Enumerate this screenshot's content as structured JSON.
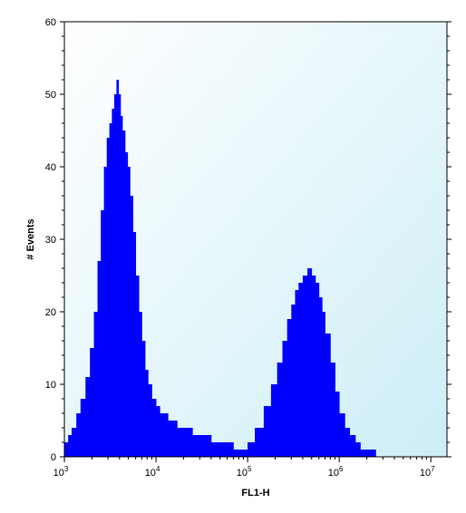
{
  "chart_data": {
    "type": "area",
    "title": "",
    "xlabel": "FL1-H",
    "ylabel": "# Events",
    "x_scale": "log",
    "xlim": [
      1000,
      15000000
    ],
    "ylim": [
      0,
      60
    ],
    "x_ticks": [
      {
        "value": 1000,
        "base": "10",
        "exp": "3"
      },
      {
        "value": 10000,
        "base": "10",
        "exp": "4"
      },
      {
        "value": 100000,
        "base": "10",
        "exp": "5"
      },
      {
        "value": 1000000,
        "base": "10",
        "exp": "6"
      },
      {
        "value": 10000000,
        "base": "10",
        "exp": "7"
      }
    ],
    "y_ticks": [
      "0",
      "10",
      "20",
      "30",
      "40",
      "50",
      "60"
    ],
    "grid": false,
    "legend": "none",
    "colors": {
      "fill": "#0000ff",
      "background_top": "#ffffff",
      "background_bottom": "#cdeef6",
      "axis": "#000000"
    },
    "series": [
      {
        "x": [
          1000,
          1100,
          1200,
          1350,
          1500,
          1700,
          1900,
          2100,
          2300,
          2500,
          2700,
          2900,
          3100,
          3300,
          3500,
          3700,
          3900,
          4100,
          4300,
          4600,
          4900,
          5200,
          5600,
          6000,
          6500,
          7000,
          7600,
          8200,
          9000,
          10000,
          11000,
          12000,
          13500,
          15000,
          17000,
          20000,
          25000,
          30000,
          40000,
          50000,
          60000,
          70000,
          80000,
          100000,
          120000,
          150000,
          180000,
          210000,
          240000,
          270000,
          300000,
          330000,
          360000,
          400000,
          450000,
          500000,
          550000,
          600000,
          650000,
          700000,
          800000,
          900000,
          1000000,
          1150000,
          1300000,
          1500000,
          1700000,
          2000000,
          2500000,
          3000000,
          4000000,
          5000000,
          7000000,
          10000000,
          13000000,
          15000000
        ],
        "y": [
          2,
          3,
          4,
          6,
          8,
          11,
          15,
          20,
          27,
          34,
          40,
          44,
          46,
          48,
          50,
          52,
          50,
          47,
          45,
          42,
          40,
          36,
          31,
          25,
          20,
          16,
          12,
          10,
          8,
          7,
          6,
          6,
          5,
          5,
          4,
          4,
          3,
          3,
          2,
          2,
          2,
          1,
          1,
          2,
          4,
          7,
          10,
          13,
          16,
          19,
          21,
          23,
          24,
          25,
          26,
          25,
          24,
          22,
          20,
          17,
          13,
          9,
          6,
          4,
          3,
          2,
          1,
          1,
          0,
          0,
          0,
          0,
          0,
          0,
          0,
          0
        ]
      }
    ]
  }
}
